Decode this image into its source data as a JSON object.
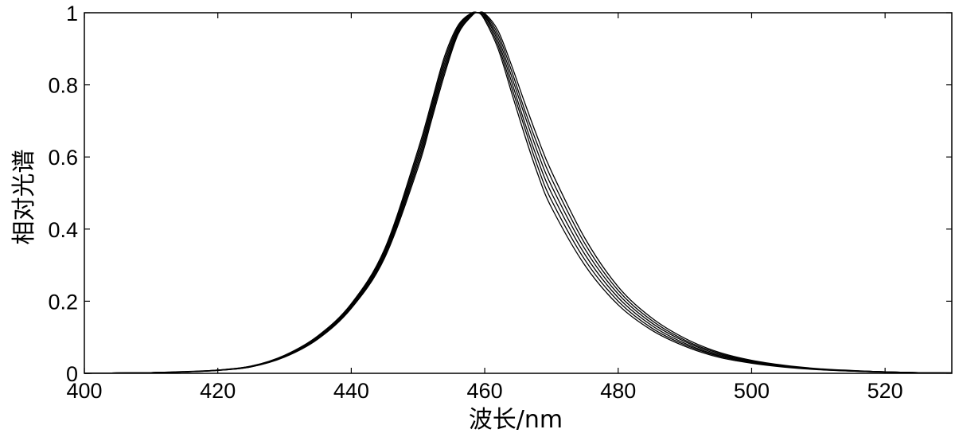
{
  "chart_data": {
    "type": "line",
    "title": "",
    "xlabel": "波长/nm",
    "ylabel": "相对光谱",
    "xlim": [
      400,
      530
    ],
    "ylim": [
      0,
      1
    ],
    "xticks": [
      400,
      420,
      440,
      460,
      480,
      500,
      520
    ],
    "yticks": [
      0,
      0.2,
      0.4,
      0.6,
      0.8,
      1
    ],
    "xtick_labels": [
      "400",
      "420",
      "440",
      "460",
      "480",
      "500",
      "520"
    ],
    "ytick_labels": [
      "0",
      "0.2",
      "0.4",
      "0.6",
      "0.8",
      "1"
    ],
    "grid": false,
    "legend": "none",
    "line_color": "#000000",
    "x": [
      400,
      405,
      410,
      415,
      420,
      425,
      430,
      435,
      440,
      445,
      450,
      452,
      454,
      456,
      458,
      459,
      460,
      462,
      464,
      466,
      468,
      470,
      475,
      480,
      485,
      490,
      495,
      500,
      505,
      510,
      515,
      520,
      525,
      530
    ],
    "series": [
      {
        "values": [
          0.0,
          0.001,
          0.002,
          0.004,
          0.008,
          0.018,
          0.045,
          0.095,
          0.18,
          0.32,
          0.57,
          0.7,
          0.83,
          0.94,
          0.99,
          1.0,
          0.98,
          0.9,
          0.78,
          0.66,
          0.55,
          0.46,
          0.3,
          0.19,
          0.12,
          0.075,
          0.045,
          0.028,
          0.017,
          0.01,
          0.006,
          0.003,
          0.002,
          0.001
        ]
      },
      {
        "values": [
          0.0,
          0.001,
          0.002,
          0.004,
          0.008,
          0.018,
          0.046,
          0.097,
          0.182,
          0.325,
          0.58,
          0.71,
          0.84,
          0.945,
          0.992,
          1.0,
          0.985,
          0.91,
          0.795,
          0.68,
          0.57,
          0.48,
          0.315,
          0.2,
          0.126,
          0.079,
          0.048,
          0.03,
          0.018,
          0.011,
          0.006,
          0.003,
          0.002,
          0.001
        ]
      },
      {
        "values": [
          0.0,
          0.001,
          0.002,
          0.004,
          0.008,
          0.019,
          0.047,
          0.099,
          0.185,
          0.33,
          0.59,
          0.72,
          0.85,
          0.95,
          0.995,
          1.0,
          0.99,
          0.92,
          0.81,
          0.695,
          0.59,
          0.5,
          0.33,
          0.21,
          0.133,
          0.083,
          0.05,
          0.031,
          0.019,
          0.011,
          0.007,
          0.004,
          0.002,
          0.001
        ]
      },
      {
        "values": [
          0.0,
          0.001,
          0.002,
          0.004,
          0.009,
          0.019,
          0.048,
          0.1,
          0.188,
          0.335,
          0.6,
          0.73,
          0.86,
          0.955,
          0.997,
          1.0,
          0.993,
          0.93,
          0.825,
          0.715,
          0.61,
          0.52,
          0.345,
          0.22,
          0.14,
          0.088,
          0.053,
          0.033,
          0.02,
          0.012,
          0.007,
          0.004,
          0.002,
          0.001
        ]
      },
      {
        "values": [
          0.0,
          0.001,
          0.002,
          0.004,
          0.009,
          0.02,
          0.049,
          0.102,
          0.19,
          0.34,
          0.61,
          0.74,
          0.87,
          0.96,
          0.998,
          1.0,
          0.996,
          0.94,
          0.84,
          0.73,
          0.63,
          0.54,
          0.36,
          0.23,
          0.147,
          0.092,
          0.056,
          0.034,
          0.021,
          0.012,
          0.007,
          0.004,
          0.002,
          0.001
        ]
      },
      {
        "values": [
          0.0,
          0.001,
          0.002,
          0.005,
          0.009,
          0.02,
          0.05,
          0.104,
          0.193,
          0.345,
          0.62,
          0.75,
          0.88,
          0.965,
          0.999,
          1.0,
          0.998,
          0.95,
          0.855,
          0.75,
          0.65,
          0.56,
          0.375,
          0.24,
          0.154,
          0.097,
          0.059,
          0.036,
          0.022,
          0.013,
          0.008,
          0.004,
          0.002,
          0.001
        ]
      }
    ]
  }
}
